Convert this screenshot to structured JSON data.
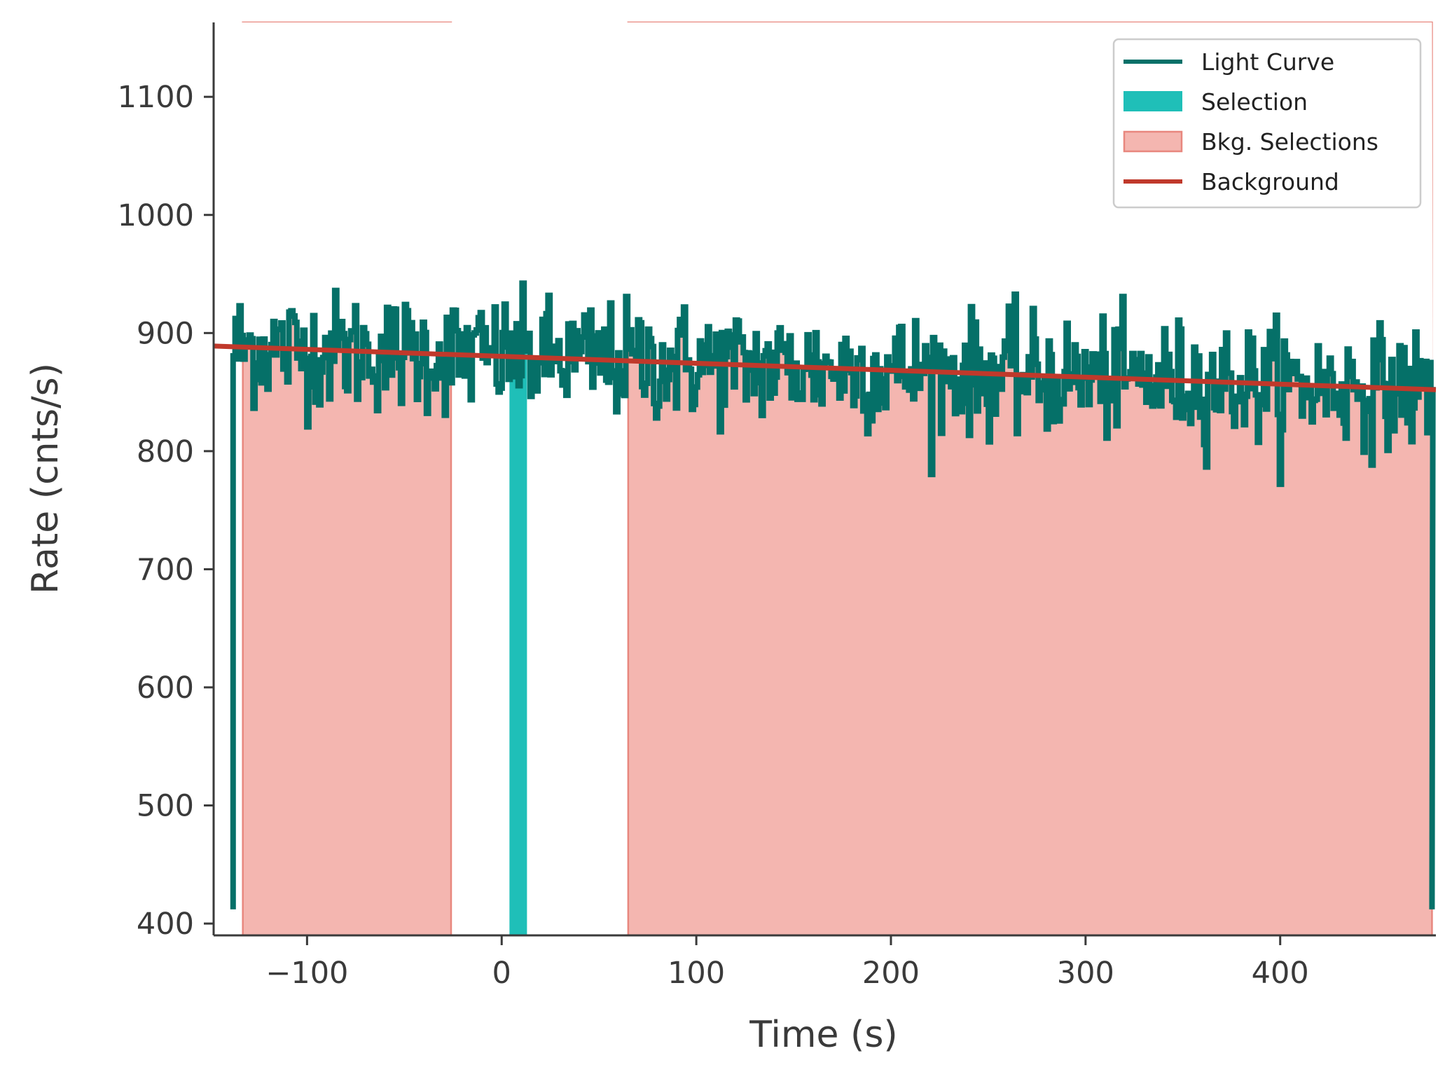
{
  "chart_data": {
    "type": "line",
    "title": "",
    "xlabel": "Time (s)",
    "ylabel": "Rate (cnts/s)",
    "xlim": [
      -148,
      480
    ],
    "ylim": [
      390,
      1163
    ],
    "xticks": [
      -100,
      0,
      100,
      200,
      300,
      400
    ],
    "xtick_labels": [
      "−100",
      "0",
      "100",
      "200",
      "300",
      "400"
    ],
    "yticks": [
      400,
      500,
      600,
      700,
      800,
      900,
      1000,
      1100
    ],
    "ytick_labels": [
      "400",
      "500",
      "600",
      "700",
      "800",
      "900",
      "1000",
      "1100"
    ],
    "grid": false,
    "legend_position": "top-right",
    "colors": {
      "light_curve": "#057068",
      "selection": "#1fbfb8",
      "bkg_selection_fill": "#f4b6b0",
      "bkg_selection_edge": "#e8877e",
      "background": "#c0392b",
      "axis": "#3a3a3a"
    },
    "series": [
      {
        "name": "Light Curve",
        "kind": "step",
        "x_start": -138,
        "x_end": 478,
        "bin_width": 1.024,
        "mean_approx": 870,
        "noise_std_approx": 25,
        "drop_to": 412
      },
      {
        "name": "Background",
        "kind": "line",
        "x": [
          -148,
          480
        ],
        "y": [
          889,
          852
        ]
      }
    ],
    "selection": {
      "name": "Selection",
      "start": 4,
      "end": 13
    },
    "bkg_selections": {
      "name": "Bkg. Selections",
      "intervals": [
        [
          -133,
          -26
        ],
        [
          65,
          478
        ]
      ]
    },
    "legend": [
      {
        "label": "Light Curve",
        "marker": "line",
        "color_key": "light_curve"
      },
      {
        "label": "Selection",
        "marker": "patch",
        "color_key": "selection"
      },
      {
        "label": "Bkg. Selections",
        "marker": "patch-edge",
        "color_key": "bkg_selection_fill"
      },
      {
        "label": "Background",
        "marker": "line",
        "color_key": "background"
      }
    ]
  }
}
